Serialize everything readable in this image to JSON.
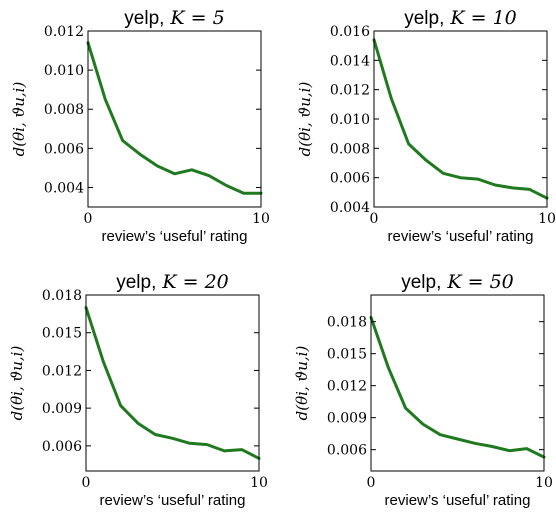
{
  "chart_data": [
    {
      "type": "line",
      "title_prefix": "yelp,",
      "title_math": "K = 5",
      "xlabel": "review’s ‘useful’ rating",
      "ylabel": "d(θi, ϑu,i)",
      "xlim": [
        0,
        10
      ],
      "ylim": [
        0.003,
        0.012
      ],
      "xticks": [
        0,
        10
      ],
      "yticks": [
        0.004,
        0.006,
        0.008,
        0.01,
        0.012
      ],
      "ytick_labels": [
        "0.004",
        "0.006",
        "0.008",
        "0.010",
        "0.012"
      ],
      "series": [
        {
          "color": "#1f7a1f",
          "x": [
            0,
            1,
            2,
            3,
            4,
            5,
            6,
            7,
            8,
            9,
            10
          ],
          "y": [
            0.0114,
            0.0085,
            0.0064,
            0.0057,
            0.0051,
            0.0047,
            0.0049,
            0.0046,
            0.0041,
            0.0037,
            0.0037
          ]
        }
      ]
    },
    {
      "type": "line",
      "title_prefix": "yelp,",
      "title_math": "K = 10",
      "xlabel": "review’s ‘useful’ rating",
      "ylabel": "d(θi, ϑu,i)",
      "xlim": [
        0,
        10
      ],
      "ylim": [
        0.004,
        0.016
      ],
      "xticks": [
        0,
        10
      ],
      "yticks": [
        0.004,
        0.006,
        0.008,
        0.01,
        0.012,
        0.014,
        0.016
      ],
      "ytick_labels": [
        "0.004",
        "0.006",
        "0.008",
        "0.010",
        "0.012",
        "0.014",
        "0.016"
      ],
      "series": [
        {
          "color": "#1f7a1f",
          "x": [
            0,
            1,
            2,
            3,
            4,
            5,
            6,
            7,
            8,
            9,
            10
          ],
          "y": [
            0.0154,
            0.0114,
            0.0083,
            0.0072,
            0.0063,
            0.006,
            0.0059,
            0.0055,
            0.0053,
            0.0052,
            0.0046
          ]
        }
      ]
    },
    {
      "type": "line",
      "title_prefix": "yelp,",
      "title_math": "K = 20",
      "xlabel": "review’s ‘useful’ rating",
      "ylabel": "d(θi, ϑu,i)",
      "xlim": [
        0,
        10
      ],
      "ylim": [
        0.004,
        0.018
      ],
      "xticks": [
        0,
        10
      ],
      "yticks": [
        0.006,
        0.009,
        0.012,
        0.015,
        0.018
      ],
      "ytick_labels": [
        "0.006",
        "0.009",
        "0.012",
        "0.015",
        "0.018"
      ],
      "series": [
        {
          "color": "#1f7a1f",
          "x": [
            0,
            1,
            2,
            3,
            4,
            5,
            6,
            7,
            8,
            9,
            10
          ],
          "y": [
            0.017,
            0.0127,
            0.0092,
            0.0078,
            0.0069,
            0.0066,
            0.0062,
            0.0061,
            0.0056,
            0.0057,
            0.005
          ]
        }
      ]
    },
    {
      "type": "line",
      "title_prefix": "yelp,",
      "title_math": "K = 50",
      "xlabel": "review’s ‘useful’ rating",
      "ylabel": "d(θi, ϑu,i)",
      "xlim": [
        0,
        10
      ],
      "ylim": [
        0.004,
        0.0205
      ],
      "xticks": [
        0,
        10
      ],
      "yticks": [
        0.006,
        0.009,
        0.012,
        0.015,
        0.018
      ],
      "ytick_labels": [
        "0.006",
        "0.009",
        "0.012",
        "0.015",
        "0.018"
      ],
      "series": [
        {
          "color": "#1f7a1f",
          "x": [
            0,
            1,
            2,
            3,
            4,
            5,
            6,
            7,
            8,
            9,
            10
          ],
          "y": [
            0.0184,
            0.0137,
            0.0099,
            0.0084,
            0.0074,
            0.007,
            0.0066,
            0.0063,
            0.0059,
            0.0061,
            0.0053
          ]
        }
      ]
    }
  ]
}
